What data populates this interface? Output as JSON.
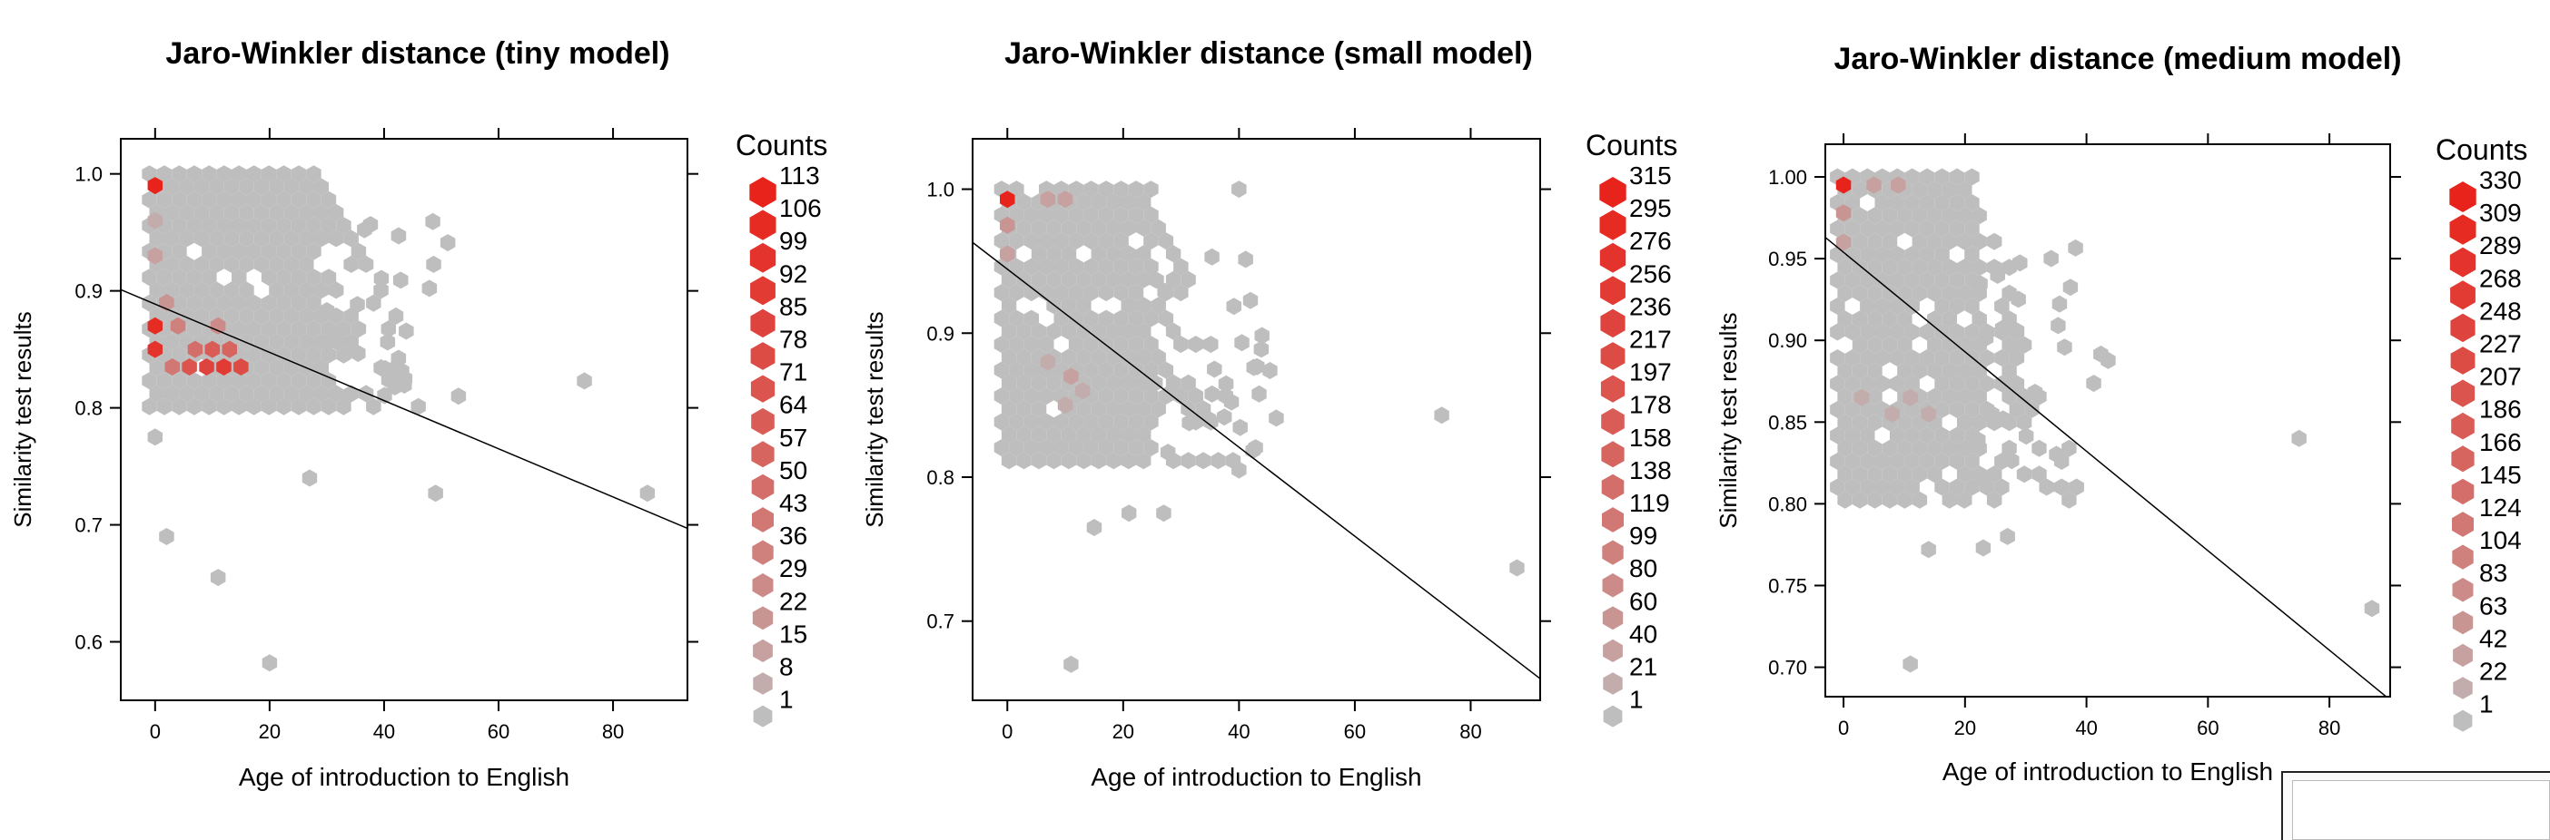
{
  "chart_data": [
    {
      "type": "hexbin",
      "title": "Jaro-Winkler distance (tiny model)",
      "xlabel": "Age of introduction to English",
      "ylabel": "Similarity test results",
      "xlim": [
        -6,
        93
      ],
      "ylim": [
        0.55,
        1.03
      ],
      "xticks": [
        "0",
        "20",
        "40",
        "60",
        "80"
      ],
      "yticks": [
        "0.6",
        "0.7",
        "0.8",
        "0.9",
        "1.0"
      ],
      "legend_title": "Counts",
      "legend_labels": [
        "113",
        "106",
        "99",
        "92",
        "85",
        "78",
        "71",
        "64",
        "57",
        "50",
        "43",
        "36",
        "29",
        "22",
        "15",
        "8",
        "1"
      ],
      "trend_line": {
        "x": [
          -6,
          93
        ],
        "y": [
          0.901,
          0.697
        ]
      },
      "max_count": 113,
      "colors": {
        "low": "#bebebe",
        "high": "#e8231b"
      },
      "points": [
        {
          "x": 0,
          "y": 0.99,
          "count": 113
        },
        {
          "x": 0,
          "y": 0.87,
          "count": 106
        },
        {
          "x": 0,
          "y": 0.85,
          "count": 99
        },
        {
          "x": 12,
          "y": 0.835,
          "count": 92
        },
        {
          "x": 9,
          "y": 0.835,
          "count": 85
        },
        {
          "x": 15,
          "y": 0.835,
          "count": 78
        },
        {
          "x": 6,
          "y": 0.835,
          "count": 71
        },
        {
          "x": 10,
          "y": 0.85,
          "count": 64
        },
        {
          "x": 13,
          "y": 0.85,
          "count": 57
        },
        {
          "x": 7,
          "y": 0.85,
          "count": 50
        },
        {
          "x": 3,
          "y": 0.835,
          "count": 43
        },
        {
          "x": 4,
          "y": 0.87,
          "count": 36
        },
        {
          "x": 11,
          "y": 0.87,
          "count": 29
        },
        {
          "x": 2,
          "y": 0.89,
          "count": 22
        },
        {
          "x": 0,
          "y": 0.93,
          "count": 15
        },
        {
          "x": 0,
          "y": 0.96,
          "count": 8
        },
        {
          "x": 0,
          "y": 0.775,
          "count": 1
        },
        {
          "x": 2,
          "y": 0.69,
          "count": 1
        },
        {
          "x": 11,
          "y": 0.655,
          "count": 1
        },
        {
          "x": 20,
          "y": 0.582,
          "count": 1
        },
        {
          "x": 27,
          "y": 0.74,
          "count": 1
        },
        {
          "x": 49,
          "y": 0.727,
          "count": 1
        },
        {
          "x": 53,
          "y": 0.81,
          "count": 1
        },
        {
          "x": 75,
          "y": 0.823,
          "count": 1
        },
        {
          "x": 86,
          "y": 0.727,
          "count": 1
        }
      ]
    },
    {
      "type": "hexbin",
      "title": "Jaro-Winkler distance (small model)",
      "xlabel": "Age of introduction to English",
      "ylabel": "Similarity test results",
      "xlim": [
        -6,
        92
      ],
      "ylim": [
        0.645,
        1.035
      ],
      "xticks": [
        "0",
        "20",
        "40",
        "60",
        "80"
      ],
      "yticks": [
        "0.7",
        "0.8",
        "0.9",
        "1.0"
      ],
      "legend_title": "Counts",
      "legend_labels": [
        "315",
        "295",
        "276",
        "256",
        "236",
        "217",
        "197",
        "178",
        "158",
        "138",
        "119",
        "99",
        "80",
        "60",
        "40",
        "21",
        "1"
      ],
      "trend_line": {
        "x": [
          -6,
          92
        ],
        "y": [
          0.963,
          0.66
        ]
      },
      "max_count": 315,
      "colors": {
        "low": "#bebebe",
        "high": "#e8231b"
      },
      "points": [
        {
          "x": 0,
          "y": 0.993,
          "count": 315
        },
        {
          "x": 0,
          "y": 0.975,
          "count": 60
        },
        {
          "x": 7,
          "y": 0.993,
          "count": 40
        },
        {
          "x": 10,
          "y": 0.993,
          "count": 40
        },
        {
          "x": 0,
          "y": 0.955,
          "count": 40
        },
        {
          "x": 11,
          "y": 0.87,
          "count": 40
        },
        {
          "x": 7,
          "y": 0.88,
          "count": 21
        },
        {
          "x": 13,
          "y": 0.86,
          "count": 21
        },
        {
          "x": 10,
          "y": 0.85,
          "count": 21
        },
        {
          "x": 11,
          "y": 0.67,
          "count": 1
        },
        {
          "x": 15,
          "y": 0.765,
          "count": 1
        },
        {
          "x": 21,
          "y": 0.775,
          "count": 1
        },
        {
          "x": 27,
          "y": 0.775,
          "count": 1
        },
        {
          "x": 40,
          "y": 1.0,
          "count": 1
        },
        {
          "x": 40,
          "y": 0.805,
          "count": 1
        },
        {
          "x": 75,
          "y": 0.843,
          "count": 1
        },
        {
          "x": 88,
          "y": 0.737,
          "count": 1
        }
      ]
    },
    {
      "type": "hexbin",
      "title": "Jaro-Winkler distance (medium model)",
      "xlabel": "Age of introduction to English",
      "ylabel": "Similarity test results",
      "xlim": [
        -3,
        90
      ],
      "ylim": [
        0.682,
        1.02
      ],
      "xticks": [
        "0",
        "20",
        "40",
        "60",
        "80"
      ],
      "yticks": [
        "0.70",
        "0.75",
        "0.80",
        "0.85",
        "0.90",
        "0.95",
        "1.00"
      ],
      "legend_title": "Counts",
      "legend_labels": [
        "330",
        "309",
        "289",
        "268",
        "248",
        "227",
        "207",
        "186",
        "166",
        "145",
        "124",
        "104",
        "83",
        "63",
        "42",
        "22",
        "1"
      ],
      "trend_line": {
        "x": [
          -3,
          90
        ],
        "y": [
          0.963,
          0.68
        ]
      },
      "max_count": 330,
      "colors": {
        "low": "#bebebe",
        "high": "#e8231b"
      },
      "points": [
        {
          "x": 0,
          "y": 0.995,
          "count": 330
        },
        {
          "x": 0,
          "y": 0.978,
          "count": 63
        },
        {
          "x": 5,
          "y": 0.995,
          "count": 42
        },
        {
          "x": 9,
          "y": 0.995,
          "count": 42
        },
        {
          "x": 0,
          "y": 0.96,
          "count": 42
        },
        {
          "x": 11,
          "y": 0.865,
          "count": 22
        },
        {
          "x": 8,
          "y": 0.855,
          "count": 22
        },
        {
          "x": 14,
          "y": 0.855,
          "count": 22
        },
        {
          "x": 3,
          "y": 0.865,
          "count": 22
        },
        {
          "x": 11,
          "y": 0.702,
          "count": 1
        },
        {
          "x": 14,
          "y": 0.772,
          "count": 1
        },
        {
          "x": 23,
          "y": 0.773,
          "count": 1
        },
        {
          "x": 27,
          "y": 0.78,
          "count": 1
        },
        {
          "x": 75,
          "y": 0.84,
          "count": 1
        },
        {
          "x": 87,
          "y": 0.736,
          "count": 1
        }
      ]
    }
  ]
}
